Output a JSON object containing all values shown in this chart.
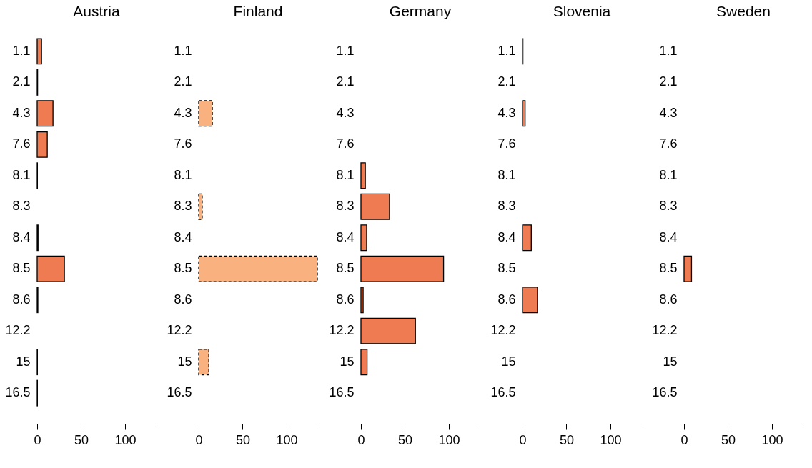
{
  "chart_data": [
    {
      "type": "bar",
      "orientation": "horizontal",
      "title": "Austria",
      "categories": [
        "1.1",
        "2.1",
        "4.3",
        "7.6",
        "8.1",
        "8.3",
        "8.4",
        "8.5",
        "8.6",
        "12.2",
        "15",
        "16.5"
      ],
      "xlim": [
        0,
        135
      ],
      "xticks": [
        0,
        50,
        100
      ],
      "grid": false,
      "series": [
        {
          "color": "#ee7b51",
          "line_style": "solid",
          "values": [
            5,
            0.5,
            18,
            11.5,
            0.3,
            null,
            1,
            31,
            0.8,
            null,
            0.3,
            0.3
          ]
        }
      ]
    },
    {
      "type": "bar",
      "orientation": "horizontal",
      "title": "Finland",
      "categories": [
        "1.1",
        "2.1",
        "4.3",
        "7.6",
        "8.1",
        "8.3",
        "8.4",
        "8.5",
        "8.6",
        "12.2",
        "15",
        "16.5"
      ],
      "xlim": [
        0,
        135
      ],
      "xticks": [
        0,
        50,
        100
      ],
      "grid": false,
      "series": [
        {
          "color": "#f9b27f",
          "line_style": "dashed",
          "values": [
            null,
            null,
            15.5,
            null,
            null,
            4,
            null,
            135,
            null,
            null,
            11.5,
            null
          ]
        }
      ]
    },
    {
      "type": "bar",
      "orientation": "horizontal",
      "title": "Germany",
      "categories": [
        "1.1",
        "2.1",
        "4.3",
        "7.6",
        "8.1",
        "8.3",
        "8.4",
        "8.5",
        "8.6",
        "12.2",
        "15",
        "16.5"
      ],
      "xlim": [
        0,
        135
      ],
      "xticks": [
        0,
        50,
        100
      ],
      "grid": false,
      "series": [
        {
          "color": "#ee7b51",
          "line_style": "solid",
          "values": [
            null,
            null,
            null,
            null,
            5,
            32.5,
            6.5,
            94,
            2.5,
            62,
            7,
            null
          ]
        }
      ]
    },
    {
      "type": "bar",
      "orientation": "horizontal",
      "title": "Slovenia",
      "categories": [
        "1.1",
        "2.1",
        "4.3",
        "7.6",
        "8.1",
        "8.3",
        "8.4",
        "8.5",
        "8.6",
        "12.2",
        "15",
        "16.5"
      ],
      "xlim": [
        0,
        135
      ],
      "xticks": [
        0,
        50,
        100
      ],
      "grid": false,
      "series": [
        {
          "color": "#ee7b51",
          "line_style": "solid",
          "values": [
            0.5,
            null,
            3,
            null,
            null,
            null,
            10,
            null,
            17,
            null,
            null,
            null
          ]
        }
      ]
    },
    {
      "type": "bar",
      "orientation": "horizontal",
      "title": "Sweden",
      "categories": [
        "1.1",
        "2.1",
        "4.3",
        "7.6",
        "8.1",
        "8.3",
        "8.4",
        "8.5",
        "8.6",
        "12.2",
        "15",
        "16.5"
      ],
      "xlim": [
        0,
        135
      ],
      "xticks": [
        0,
        50,
        100
      ],
      "grid": false,
      "series": [
        {
          "color": "#ee7b51",
          "line_style": "solid",
          "values": [
            null,
            null,
            null,
            null,
            null,
            null,
            null,
            8.5,
            null,
            null,
            null,
            null
          ]
        }
      ]
    }
  ]
}
